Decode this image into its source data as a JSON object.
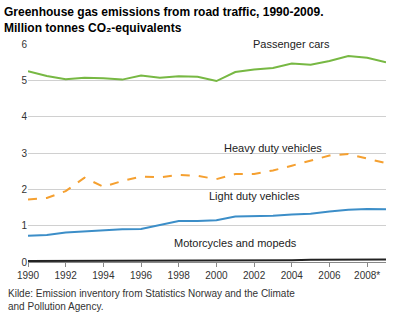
{
  "chart_data": {
    "type": "line",
    "title": "Greenhouse gas emissions from road traffic, 1990-2009.",
    "subtitle": "Million tonnes CO₂-equivalents",
    "source": "Kilde: Emission inventory from Statistics Norway and the Climate and Pollution Agency.",
    "x": [
      1990,
      1991,
      1992,
      1993,
      1994,
      1995,
      1996,
      1997,
      1998,
      1999,
      2000,
      2001,
      2002,
      2003,
      2004,
      2005,
      2006,
      2007,
      2008,
      2009
    ],
    "series": [
      {
        "name": "Passenger cars",
        "color": "#77b843",
        "line_style": "solid",
        "values": [
          5.25,
          5.12,
          5.03,
          5.07,
          5.06,
          5.02,
          5.13,
          5.07,
          5.11,
          5.1,
          4.98,
          5.23,
          5.3,
          5.34,
          5.46,
          5.43,
          5.53,
          5.67,
          5.62,
          5.5
        ]
      },
      {
        "name": "Heavy duty vehicles",
        "color": "#f5a030",
        "line_style": "dashed",
        "values": [
          1.72,
          1.76,
          1.95,
          2.32,
          2.07,
          2.23,
          2.35,
          2.33,
          2.4,
          2.37,
          2.28,
          2.42,
          2.42,
          2.52,
          2.65,
          2.79,
          2.93,
          2.97,
          2.85,
          2.72
        ]
      },
      {
        "name": "Light duty vehicles",
        "color": "#3c8ec8",
        "line_style": "solid",
        "values": [
          0.72,
          0.74,
          0.81,
          0.84,
          0.88,
          0.9,
          0.91,
          1.02,
          1.13,
          1.13,
          1.15,
          1.25,
          1.26,
          1.27,
          1.31,
          1.33,
          1.39,
          1.44,
          1.46,
          1.45
        ]
      },
      {
        "name": "Motorcycles and mopeds",
        "color": "#222222",
        "line_style": "solid",
        "values": [
          0.03,
          0.03,
          0.03,
          0.03,
          0.03,
          0.03,
          0.03,
          0.03,
          0.04,
          0.04,
          0.04,
          0.05,
          0.05,
          0.05,
          0.05,
          0.06,
          0.06,
          0.07,
          0.07,
          0.07
        ]
      }
    ],
    "xlim": [
      1990,
      2009
    ],
    "xticks": [
      1990,
      1992,
      1994,
      1996,
      1998,
      2000,
      2002,
      2004,
      2006,
      {
        "value": 2008,
        "label": "2008*"
      }
    ],
    "ylim": [
      0,
      6
    ],
    "yticks": [
      0,
      1,
      2,
      3,
      4,
      5,
      6
    ],
    "grid": true
  }
}
